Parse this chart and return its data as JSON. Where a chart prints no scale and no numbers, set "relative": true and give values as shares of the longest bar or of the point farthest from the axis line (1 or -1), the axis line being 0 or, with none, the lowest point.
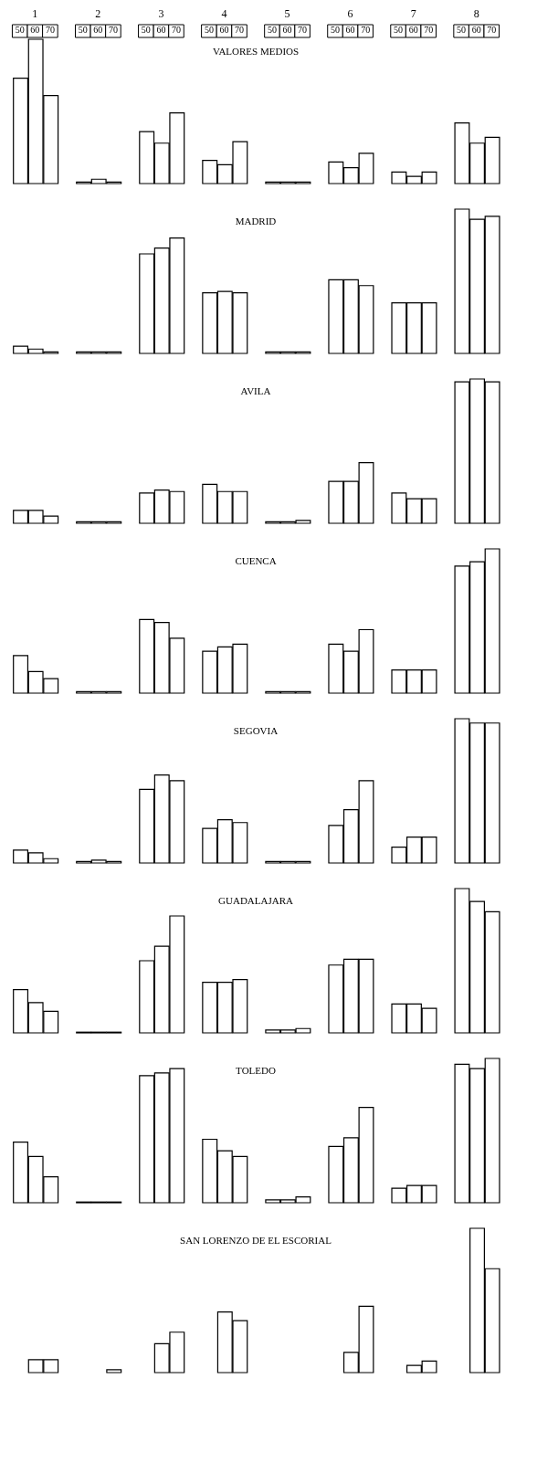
{
  "chart_data": [
    {
      "type": "bar",
      "title": "VALORES MEDIOS",
      "relative": true,
      "grid": false,
      "legend": "top",
      "categories": [
        "1",
        "2",
        "3",
        "4",
        "5",
        "6",
        "7",
        "8"
      ],
      "series": [
        {
          "name": "50",
          "color": "#ffffff",
          "values": [
            0.73,
            0.01,
            0.36,
            0.16,
            0.01,
            0.15,
            0.08,
            0.42
          ]
        },
        {
          "name": "60",
          "color": "#ffffff",
          "values": [
            1.0,
            0.03,
            0.28,
            0.13,
            0.01,
            0.11,
            0.05,
            0.28
          ]
        },
        {
          "name": "70",
          "color": "#ffffff",
          "values": [
            0.61,
            0.01,
            0.49,
            0.29,
            0.01,
            0.21,
            0.08,
            0.32
          ]
        }
      ]
    },
    {
      "type": "bar",
      "title": "MADRID",
      "relative": true,
      "grid": false,
      "tick_labels": false,
      "categories": [
        "1",
        "2",
        "3",
        "4",
        "5",
        "6",
        "7",
        "8"
      ],
      "series": [
        {
          "color": "#ffffff",
          "values": [
            0.05,
            0.01,
            0.69,
            0.42,
            0.01,
            0.51,
            0.35,
            1.0
          ]
        },
        {
          "color": "#ffffff",
          "values": [
            0.03,
            0.01,
            0.73,
            0.43,
            0.01,
            0.51,
            0.35,
            0.93
          ]
        },
        {
          "color": "#ffffff",
          "values": [
            0.01,
            0.01,
            0.8,
            0.42,
            0.01,
            0.47,
            0.35,
            0.95
          ]
        }
      ]
    },
    {
      "type": "bar",
      "title": "AVILA",
      "relative": true,
      "grid": false,
      "tick_labels": false,
      "categories": [
        "1",
        "2",
        "3",
        "4",
        "5",
        "6",
        "7",
        "8"
      ],
      "series": [
        {
          "color": "#ffffff",
          "values": [
            0.09,
            0.01,
            0.21,
            0.27,
            0.01,
            0.29,
            0.21,
            0.98
          ]
        },
        {
          "color": "#ffffff",
          "values": [
            0.09,
            0.01,
            0.23,
            0.22,
            0.01,
            0.29,
            0.17,
            1.0
          ]
        },
        {
          "color": "#ffffff",
          "values": [
            0.05,
            0.01,
            0.22,
            0.22,
            0.02,
            0.42,
            0.17,
            0.98
          ]
        }
      ]
    },
    {
      "type": "bar",
      "title": "CUENCA",
      "relative": true,
      "grid": false,
      "tick_labels": false,
      "categories": [
        "1",
        "2",
        "3",
        "4",
        "5",
        "6",
        "7",
        "8"
      ],
      "series": [
        {
          "color": "#ffffff",
          "values": [
            0.26,
            0.01,
            0.51,
            0.29,
            0.01,
            0.34,
            0.16,
            0.88
          ]
        },
        {
          "color": "#ffffff",
          "values": [
            0.15,
            0.01,
            0.49,
            0.32,
            0.01,
            0.29,
            0.16,
            0.91
          ]
        },
        {
          "color": "#ffffff",
          "values": [
            0.1,
            0.01,
            0.38,
            0.34,
            0.01,
            0.44,
            0.16,
            1.0
          ]
        }
      ]
    },
    {
      "type": "bar",
      "title": "SEGOVIA",
      "relative": true,
      "grid": false,
      "tick_labels": false,
      "categories": [
        "1",
        "2",
        "3",
        "4",
        "5",
        "6",
        "7",
        "8"
      ],
      "series": [
        {
          "color": "#ffffff",
          "values": [
            0.09,
            0.01,
            0.51,
            0.24,
            0.01,
            0.26,
            0.11,
            1.0
          ]
        },
        {
          "color": "#ffffff",
          "values": [
            0.07,
            0.02,
            0.61,
            0.3,
            0.01,
            0.37,
            0.18,
            0.97
          ]
        },
        {
          "color": "#ffffff",
          "values": [
            0.03,
            0.01,
            0.57,
            0.28,
            0.01,
            0.57,
            0.18,
            0.97
          ]
        }
      ]
    },
    {
      "type": "bar",
      "title": "GUADALAJARA",
      "relative": true,
      "grid": false,
      "tick_labels": false,
      "categories": [
        "1",
        "2",
        "3",
        "4",
        "5",
        "6",
        "7",
        "8"
      ],
      "series": [
        {
          "color": "#ffffff",
          "values": [
            0.3,
            0.005,
            0.5,
            0.35,
            0.02,
            0.47,
            0.2,
            1.0
          ]
        },
        {
          "color": "#ffffff",
          "values": [
            0.21,
            0.005,
            0.6,
            0.35,
            0.02,
            0.51,
            0.2,
            0.91
          ]
        },
        {
          "color": "#ffffff",
          "values": [
            0.15,
            0.005,
            0.81,
            0.37,
            0.03,
            0.51,
            0.17,
            0.84
          ]
        }
      ]
    },
    {
      "type": "bar",
      "title": "TOLEDO",
      "relative": true,
      "grid": false,
      "tick_labels": false,
      "categories": [
        "1",
        "2",
        "3",
        "4",
        "5",
        "6",
        "7",
        "8"
      ],
      "series": [
        {
          "color": "#ffffff",
          "values": [
            0.42,
            0.005,
            0.88,
            0.44,
            0.02,
            0.39,
            0.1,
            0.96
          ]
        },
        {
          "color": "#ffffff",
          "values": [
            0.32,
            0.005,
            0.9,
            0.36,
            0.02,
            0.45,
            0.12,
            0.93
          ]
        },
        {
          "color": "#ffffff",
          "values": [
            0.18,
            0.005,
            0.93,
            0.32,
            0.04,
            0.66,
            0.12,
            1.0
          ]
        }
      ]
    },
    {
      "type": "bar",
      "title": "SAN LORENZO DE EL ESCORIAL",
      "relative": true,
      "grid": false,
      "tick_labels": false,
      "categories": [
        "1",
        "2",
        "3",
        "4",
        "5",
        "6",
        "7",
        "8"
      ],
      "series": [
        {
          "color": "#ffffff",
          "values": [
            null,
            null,
            null,
            null,
            null,
            null,
            null,
            null
          ]
        },
        {
          "color": "#ffffff",
          "values": [
            0.09,
            null,
            0.2,
            0.42,
            null,
            0.14,
            0.05,
            1.0
          ]
        },
        {
          "color": "#ffffff",
          "values": [
            0.09,
            0.02,
            0.28,
            0.36,
            null,
            0.46,
            0.08,
            0.72
          ]
        }
      ]
    }
  ]
}
